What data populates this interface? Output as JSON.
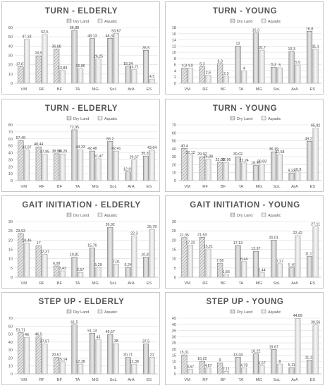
{
  "chart_data": [
    {
      "type": "bar",
      "title": "TURN - ELDERLY",
      "categories": [
        "VM",
        "RF",
        "BF",
        "TA",
        "MG",
        "SoL",
        "ArA",
        "ES"
      ],
      "series": [
        {
          "name": "Dry Land",
          "values": [
            17.67,
            29.5,
            36.88,
            56.88,
            48.13,
            48.38,
            18.34,
            35.5
          ]
        },
        {
          "name": "Aquatic",
          "values": [
            47.33,
            52.5,
            13.83,
            15.86,
            26.25,
            53.67,
            14.71,
            4.5
          ]
        }
      ],
      "yticks": [
        0,
        10,
        20,
        30,
        40,
        50,
        60
      ],
      "ylim": [
        0,
        60
      ]
    },
    {
      "type": "bar",
      "title": "TURN - YOUNG",
      "categories": [
        "VM",
        "RF",
        "BF",
        "TA",
        "MG",
        "SoL",
        "ArA",
        "ES"
      ],
      "series": [
        {
          "name": "Dry Land",
          "values": [
            4.9,
            5.3,
            6.3,
            12,
            16.3,
            5.2,
            10.3,
            16.8
          ]
        },
        {
          "name": "Aquatic",
          "values": [
            4.9,
            2.6,
            2.3,
            4,
            10.7,
            5,
            5.9,
            11.1
          ]
        }
      ],
      "yticks": [
        0,
        2,
        4,
        6,
        8,
        10,
        12,
        14,
        16,
        18
      ],
      "ylim": [
        0,
        18
      ]
    },
    {
      "type": "bar",
      "title": "TURN - ELDERLY",
      "categories": [
        "VM",
        "RF",
        "BF",
        "TA",
        "MG",
        "SoL",
        "ArA",
        "ES"
      ],
      "series": [
        {
          "name": "Dry Land",
          "values": [
            57.49,
            48.44,
            38.56,
            72.95,
            42.48,
            56.2,
            12.69,
            35.32
          ]
        },
        {
          "name": "Aquatic",
          "values": [
            43.97,
            37.95,
            38.29,
            44.33,
            31.47,
            42.41,
            29.67,
            43.64
          ]
        }
      ],
      "yticks": [
        0,
        10,
        20,
        30,
        40,
        50,
        60,
        70,
        80
      ],
      "ylim": [
        0,
        80
      ]
    },
    {
      "type": "bar",
      "title": "TURN - YOUNG",
      "categories": [
        "VM",
        "RF",
        "BF",
        "TA",
        "MG",
        "SoL",
        "ArA",
        "ES"
      ],
      "series": [
        {
          "name": "Dry Land",
          "values": [
            40.4,
            29.97,
            23.08,
            30.02,
            18.97,
            36.19,
            9.33,
            49.27
          ]
        },
        {
          "name": "Aquatic",
          "values": [
            32.12,
            26.88,
            22.96,
            22.24,
            20.69,
            32.68,
            10.8,
            65.92
          ]
        }
      ],
      "yticks": [
        0,
        10,
        20,
        30,
        40,
        50,
        60,
        70
      ],
      "ylim": [
        0,
        70
      ]
    },
    {
      "type": "bar",
      "title": "GAIT INITIATION - ELDERLY",
      "categories": [
        "VM",
        "RF",
        "BF",
        "TA",
        "MG",
        "SoL",
        "ArA",
        "ES"
      ],
      "series": [
        {
          "name": "Dry Land",
          "values": [
            23.53,
            17,
            6.08,
            10.81,
            15.76,
            26.92,
            5.24,
            10.83
          ]
        },
        {
          "name": "Aquatic",
          "values": [
            18.46,
            12.37,
            3.43,
            2.57,
            5.29,
            7.01,
            22.3,
            25.78
          ]
        }
      ],
      "yticks": [
        0,
        5,
        10,
        15,
        20,
        25,
        30
      ],
      "ylim": [
        0,
        30
      ]
    },
    {
      "type": "bar",
      "title": "GAIT INITIATION - YOUNG",
      "categories": [
        "VM",
        "RF",
        "BF",
        "TA",
        "MG",
        "SoL",
        "ArA",
        "ES"
      ],
      "series": [
        {
          "name": "Dry Land",
          "values": [
            21.35,
            21.53,
            7.56,
            17.13,
            13.97,
            20.01,
            5.15,
            11.17
          ]
        },
        {
          "name": "Aquatic",
          "values": [
            17.32,
            15.21,
            1.56,
            8.44,
            2.44,
            7.27,
            22.42,
            27.11
          ]
        }
      ],
      "yticks": [
        0,
        5,
        10,
        15,
        20,
        25,
        30
      ],
      "ylim": [
        0,
        30
      ]
    },
    {
      "type": "bar",
      "title": "STEP UP - ELDERLY",
      "categories": [
        "VM",
        "RF",
        "BF",
        "TA",
        "MG",
        "SoL",
        "ArA",
        "ES"
      ],
      "series": [
        {
          "name": "Dry Land",
          "values": [
            51.71,
            46.5,
            20.67,
            61.5,
            51.13,
            49.57,
            20.71,
            37.5
          ]
        },
        {
          "name": "Aquatic",
          "values": [
            46,
            37.57,
            15.14,
            12.38,
            43,
            38,
            12.38,
            21
          ]
        }
      ],
      "yticks": [
        0,
        10,
        20,
        30,
        40,
        50,
        60,
        70
      ],
      "ylim": [
        0,
        70
      ]
    },
    {
      "type": "bar",
      "title": "STEP UP - YOUNG",
      "categories": [
        "VM",
        "RF",
        "BF",
        "TA",
        "MG",
        "SoL",
        "ArA",
        "ES"
      ],
      "series": [
        {
          "name": "Dry Land",
          "values": [
            15.31,
            10.22,
            9,
            13.44,
            16.22,
            19.67,
            5.11,
            11.11
          ]
        },
        {
          "name": "Aquatic",
          "values": [
            3.67,
            4.67,
            2.11,
            4.78,
            6.67,
            8,
            44.89,
            39.56
          ]
        }
      ],
      "yticks": [
        0,
        5,
        10,
        15,
        20,
        25,
        30,
        35,
        40,
        45
      ],
      "ylim": [
        0,
        45
      ]
    }
  ]
}
